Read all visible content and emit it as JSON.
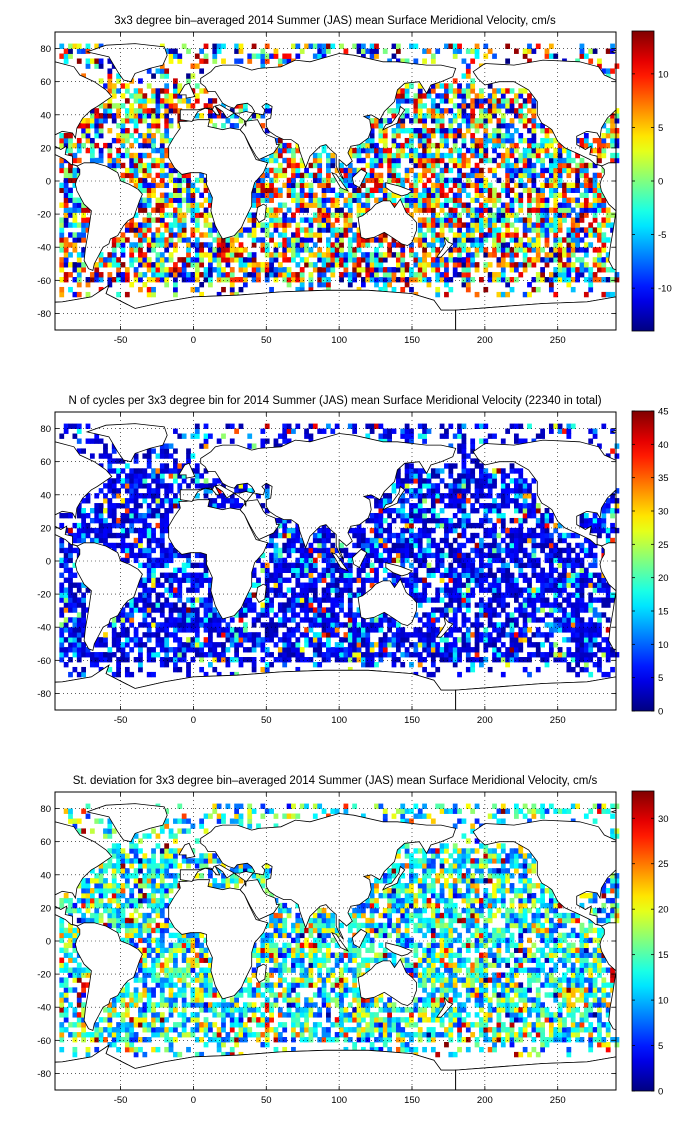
{
  "chart_data": [
    {
      "type": "heatmap",
      "title": "3x3 degree bin–averaged 2014 Summer (JAS) mean Surface Meridional Velocity, cm/s",
      "xlim": [
        -95,
        290
      ],
      "ylim": [
        -90,
        90
      ],
      "xticks": [
        "-50",
        "0",
        "50",
        "100",
        "150",
        "200",
        "250"
      ],
      "yticks": [
        "80",
        "60",
        "40",
        "20",
        "0",
        "-20",
        "-40",
        "-60",
        "-80"
      ],
      "colorbar": {
        "clim": [
          -14,
          14
        ],
        "ticks": [
          "10",
          "5",
          "0",
          "-5",
          "-10"
        ],
        "tick_values": [
          10,
          5,
          0,
          -5,
          -10
        ]
      },
      "bin_size_deg": 3,
      "grid": true,
      "legend": "colorbar-right",
      "colormap": "jet"
    },
    {
      "type": "heatmap",
      "title": "N of cycles per 3x3 degree bin for 2014 Summer (JAS) mean Surface Meridional Velocity (22340 in total)",
      "xlim": [
        -95,
        290
      ],
      "ylim": [
        -90,
        90
      ],
      "xticks": [
        "-50",
        "0",
        "50",
        "100",
        "150",
        "200",
        "250"
      ],
      "yticks": [
        "80",
        "60",
        "40",
        "20",
        "0",
        "-20",
        "-40",
        "-60",
        "-80"
      ],
      "colorbar": {
        "clim": [
          0,
          45
        ],
        "ticks": [
          "45",
          "40",
          "35",
          "30",
          "25",
          "20",
          "15",
          "10",
          "5",
          "0"
        ],
        "tick_values": [
          45,
          40,
          35,
          30,
          25,
          20,
          15,
          10,
          5,
          0
        ]
      },
      "bin_size_deg": 3,
      "grid": true,
      "legend": "colorbar-right",
      "colormap": "jet"
    },
    {
      "type": "heatmap",
      "title": "St. deviation for 3x3 degree bin–averaged 2014 Summer (JAS) mean Surface Meridional Velocity, cm/s",
      "xlim": [
        -95,
        290
      ],
      "ylim": [
        -90,
        90
      ],
      "xticks": [
        "-50",
        "0",
        "50",
        "100",
        "150",
        "200",
        "250"
      ],
      "yticks": [
        "80",
        "60",
        "40",
        "20",
        "0",
        "-20",
        "-40",
        "-60",
        "-80"
      ],
      "colorbar": {
        "clim": [
          0,
          33
        ],
        "ticks": [
          "30",
          "25",
          "20",
          "15",
          "10",
          "5",
          "0"
        ],
        "tick_values": [
          30,
          25,
          20,
          15,
          10,
          5,
          0
        ]
      },
      "bin_size_deg": 3,
      "grid": true,
      "legend": "colorbar-right",
      "colormap": "jet"
    }
  ]
}
